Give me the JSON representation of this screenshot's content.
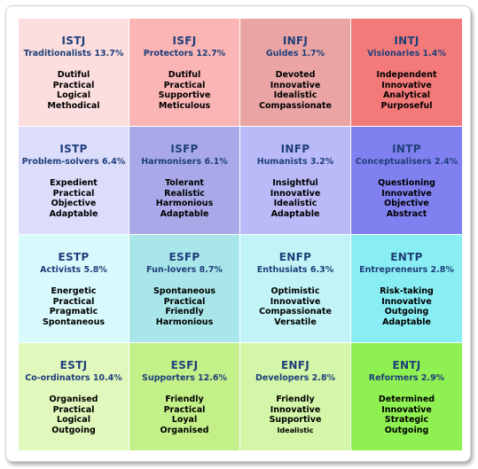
{
  "cells": [
    {
      "code": "ISTJ",
      "label": "Traditionalists 13.7%",
      "traits": [
        "Dutiful",
        "Practical",
        "Logical",
        "Methodical"
      ],
      "color": "#fddede"
    },
    {
      "code": "ISFJ",
      "label": "Protectors 12.7%",
      "traits": [
        "Dutiful",
        "Practical",
        "Supportive",
        "Meticulous"
      ],
      "color": "#fbb5b5"
    },
    {
      "code": "INFJ",
      "label": "Guides 1.7%",
      "traits": [
        "Devoted",
        "Innovative",
        "Idealistic",
        "Compassionate"
      ],
      "color": "#eaa4a4"
    },
    {
      "code": "INTJ",
      "label": "Visionaries 1.4%",
      "traits": [
        "Independent",
        "Innovative",
        "Analytical",
        "Purposeful"
      ],
      "color": "#f47a7a"
    },
    {
      "code": "ISTP",
      "label": "Problem-solvers 6.4%",
      "traits": [
        "Expedient",
        "Practical",
        "Objective",
        "Adaptable"
      ],
      "color": "#dcdcfb"
    },
    {
      "code": "ISFP",
      "label": "Harmonisers 6.1%",
      "traits": [
        "Tolerant",
        "Realistic",
        "Harmonious",
        "Adaptable"
      ],
      "color": "#a9a9e9"
    },
    {
      "code": "INFP",
      "label": "Humanists 3.2%",
      "traits": [
        "Insightful",
        "Innovative",
        "Idealistic",
        "Adaptable"
      ],
      "color": "#babaf8"
    },
    {
      "code": "INTP",
      "label": "Conceptualisers 2.4%",
      "traits": [
        "Questioning",
        "Innovative",
        "Objective",
        "Abstract"
      ],
      "color": "#8080f0"
    },
    {
      "code": "ESTP",
      "label": "Activists 5.8%",
      "traits": [
        "Energetic",
        "Practical",
        "Pragmatic",
        "Spontaneous"
      ],
      "color": "#d8fafd"
    },
    {
      "code": "ESFP",
      "label": "Fun-lovers 8.7%",
      "traits": [
        "Spontaneous",
        "Practical",
        "Friendly",
        "Harmonious"
      ],
      "color": "#a8e6ea"
    },
    {
      "code": "ENFP",
      "label": "Enthusiats 6.3%",
      "traits": [
        "Optimistic",
        "Innovative",
        "Compassionate",
        "Versatile"
      ],
      "color": "#c2f4f7"
    },
    {
      "code": "ENTP",
      "label": "Entrepreneurs 2.8%",
      "traits": [
        "Risk-taking",
        "Innovative",
        "Outgoing",
        "Adaptable"
      ],
      "color": "#88eef4"
    },
    {
      "code": "ESTJ",
      "label": "Co-ordinators 10.4%",
      "traits": [
        "Organised",
        "Practical",
        "Logical",
        "Outgoing"
      ],
      "color": "#e0f8bc"
    },
    {
      "code": "ESFJ",
      "label": "Supporters 12.6%",
      "traits": [
        "Friendly",
        "Practical",
        "Loyal",
        "Organised"
      ],
      "color": "#c3f088"
    },
    {
      "code": "ENFJ",
      "label": "Developers 2.8%",
      "traits": [
        "Friendly",
        "Innovative",
        "Supportive",
        "Idealistic"
      ],
      "color": "#d3f6a8"
    },
    {
      "code": "ENTJ",
      "label": "Reformers 2.9%",
      "traits": [
        "Determined",
        "Innovative",
        "Strategic",
        "Outgoing"
      ],
      "color": "#8ff051"
    }
  ]
}
